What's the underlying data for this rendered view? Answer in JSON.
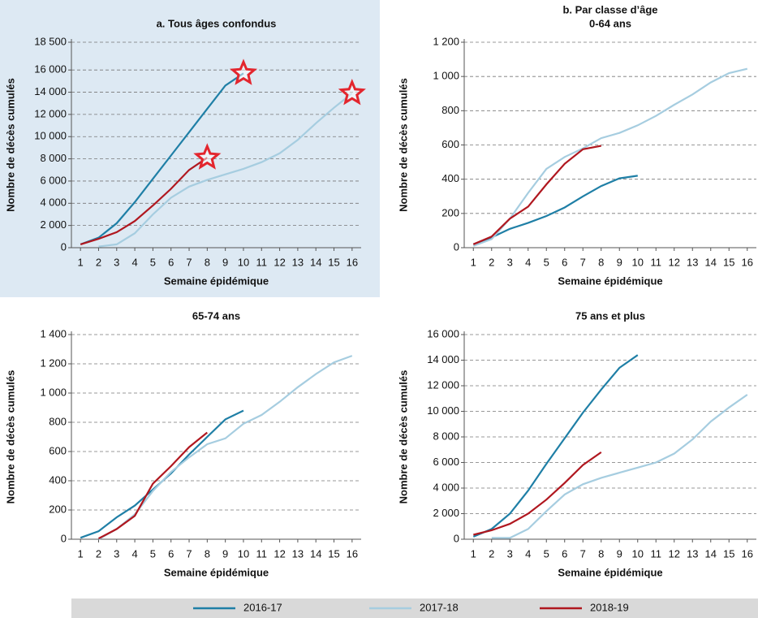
{
  "chart_data": [
    {
      "type": "line",
      "title": "a. Tous âges confondus",
      "ylabel": "Nombre de décès cumulés",
      "xlabel": "Semaine épidémique",
      "x": [
        1,
        2,
        3,
        4,
        5,
        6,
        7,
        8,
        9,
        10,
        11,
        12,
        13,
        14,
        15,
        16
      ],
      "xticks": [
        1,
        2,
        3,
        4,
        5,
        6,
        7,
        8,
        9,
        10,
        11,
        12,
        13,
        14,
        15,
        16
      ],
      "xlim": [
        0.5,
        16.5
      ],
      "ylim": [
        0,
        18500
      ],
      "yticks": [
        0,
        {
          "value": 2000,
          "label": "2 000"
        },
        {
          "value": 4000,
          "label": "4 000"
        },
        {
          "value": 6000,
          "label": "6 000"
        },
        {
          "value": 8000,
          "label": "8 000"
        },
        {
          "value": 10000,
          "label": "10 000"
        },
        {
          "value": 12000,
          "label": "12 000"
        },
        {
          "value": 14000,
          "label": "14 000"
        },
        {
          "value": 16000,
          "label": "16 000"
        },
        {
          "value": 18500,
          "label": "18 500"
        }
      ],
      "grid": true,
      "legend": "bottom",
      "end_markers": "star",
      "background": "#dde9f3",
      "series": [
        {
          "name": "2016-17",
          "color": "#1f7fa6",
          "values": [
            300,
            900,
            2200,
            4100,
            6200,
            8300,
            10400,
            12500,
            14600,
            15700,
            null,
            null,
            null,
            null,
            null,
            null
          ]
        },
        {
          "name": "2017-18",
          "color": "#a6cde0",
          "values": [
            null,
            100,
            300,
            1300,
            3000,
            4500,
            5500,
            6100,
            6600,
            7100,
            7700,
            8500,
            9700,
            11200,
            12600,
            13900
          ]
        },
        {
          "name": "2018-19",
          "color": "#b0171f",
          "values": [
            300,
            800,
            1400,
            2400,
            3800,
            5300,
            7000,
            8100,
            null,
            null,
            null,
            null,
            null,
            null,
            null,
            null
          ]
        }
      ]
    },
    {
      "type": "line",
      "title": "b. Par classe d’âge",
      "subtitle": "0-64 ans",
      "ylabel": "Nombre de décès cumulés",
      "xlabel": "Semaine épidémique",
      "x": [
        1,
        2,
        3,
        4,
        5,
        6,
        7,
        8,
        9,
        10,
        11,
        12,
        13,
        14,
        15,
        16
      ],
      "xticks": [
        1,
        2,
        3,
        4,
        5,
        6,
        7,
        8,
        9,
        10,
        11,
        12,
        13,
        14,
        15,
        16
      ],
      "xlim": [
        0.5,
        16.5
      ],
      "ylim": [
        0,
        1200
      ],
      "yticks": [
        0,
        200,
        400,
        600,
        800,
        {
          "value": 1000,
          "label": "1 000"
        },
        {
          "value": 1200,
          "label": "1 200"
        }
      ],
      "grid": true,
      "series": [
        {
          "color": "#1f7fa6",
          "values": [
            20,
            60,
            110,
            145,
            185,
            235,
            300,
            360,
            405,
            420,
            null,
            null,
            null,
            null,
            null,
            null
          ]
        },
        {
          "color": "#a6cde0",
          "values": [
            10,
            50,
            170,
            320,
            460,
            530,
            580,
            640,
            670,
            715,
            770,
            835,
            895,
            965,
            1020,
            1045
          ]
        },
        {
          "color": "#b0171f",
          "values": [
            20,
            65,
            170,
            240,
            370,
            490,
            575,
            595,
            null,
            null,
            null,
            null,
            null,
            null,
            null,
            null
          ]
        }
      ]
    },
    {
      "type": "line",
      "title": "65-74 ans",
      "ylabel": "Nombre de décès cumulés",
      "xlabel": "Semaine épidémique",
      "x": [
        1,
        2,
        3,
        4,
        5,
        6,
        7,
        8,
        9,
        10,
        11,
        12,
        13,
        14,
        15,
        16
      ],
      "xticks": [
        1,
        2,
        3,
        4,
        5,
        6,
        7,
        8,
        9,
        10,
        11,
        12,
        13,
        14,
        15,
        16
      ],
      "xlim": [
        0.5,
        16.5
      ],
      "ylim": [
        0,
        1400
      ],
      "yticks": [
        0,
        200,
        400,
        600,
        800,
        {
          "value": 1000,
          "label": "1 000"
        },
        {
          "value": 1200,
          "label": "1 200"
        },
        {
          "value": 1400,
          "label": "1 400"
        }
      ],
      "grid": true,
      "series": [
        {
          "color": "#1f7fa6",
          "values": [
            10,
            55,
            150,
            230,
            340,
            450,
            580,
            700,
            820,
            880,
            null,
            null,
            null,
            null,
            null,
            null
          ]
        },
        {
          "color": "#a6cde0",
          "values": [
            null,
            0,
            70,
            170,
            330,
            460,
            560,
            650,
            690,
            790,
            850,
            940,
            1040,
            1130,
            1210,
            1255
          ]
        },
        {
          "color": "#b0171f",
          "values": [
            null,
            5,
            70,
            160,
            380,
            500,
            630,
            730,
            null,
            null,
            null,
            null,
            null,
            null,
            null,
            null
          ]
        }
      ]
    },
    {
      "type": "line",
      "title": "75 ans et plus",
      "ylabel": "Nombre de décès cumulés",
      "xlabel": "Semaine épidémique",
      "x": [
        1,
        2,
        3,
        4,
        5,
        6,
        7,
        8,
        9,
        10,
        11,
        12,
        13,
        14,
        15,
        16
      ],
      "xticks": [
        1,
        2,
        3,
        4,
        5,
        6,
        7,
        8,
        9,
        10,
        11,
        12,
        13,
        14,
        15,
        16
      ],
      "xlim": [
        0.5,
        16.5
      ],
      "ylim": [
        0,
        16000
      ],
      "yticks": [
        0,
        {
          "value": 2000,
          "label": "2 000"
        },
        {
          "value": 4000,
          "label": "4 000"
        },
        {
          "value": 6000,
          "label": "6 000"
        },
        {
          "value": 8000,
          "label": "8 000"
        },
        {
          "value": 10000,
          "label": "10 000"
        },
        {
          "value": 12000,
          "label": "12 000"
        },
        {
          "value": 14000,
          "label": "14 000"
        },
        {
          "value": 16000,
          "label": "16 000"
        }
      ],
      "grid": true,
      "series": [
        {
          "color": "#1f7fa6",
          "values": [
            200,
            800,
            2000,
            3800,
            5900,
            7900,
            9900,
            11700,
            13400,
            14400,
            null,
            null,
            null,
            null,
            null,
            null
          ]
        },
        {
          "color": "#a6cde0",
          "values": [
            null,
            100,
            100,
            800,
            2200,
            3500,
            4300,
            4800,
            5200,
            5600,
            6000,
            6700,
            7800,
            9200,
            10300,
            11300
          ]
        },
        {
          "color": "#b0171f",
          "values": [
            350,
            700,
            1200,
            2000,
            3100,
            4400,
            5800,
            6800,
            null,
            null,
            null,
            null,
            null,
            null,
            null,
            null
          ]
        }
      ]
    }
  ]
}
